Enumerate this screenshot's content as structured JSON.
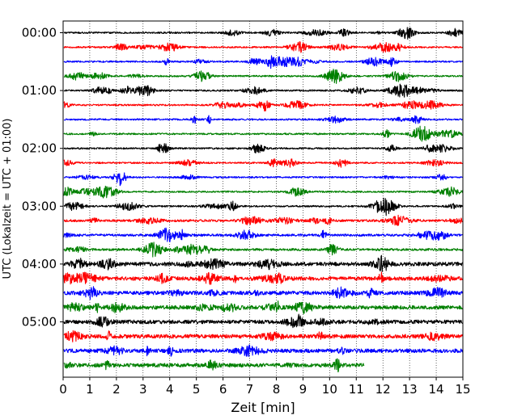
{
  "chart_data": {
    "type": "line",
    "xlabel": "Zeit  [min]",
    "ylabel": "UTC (Lokalzeit = UTC + 01:00)",
    "xlim": [
      0,
      15
    ],
    "x_ticks": [
      "0",
      "1",
      "2",
      "3",
      "4",
      "5",
      "6",
      "7",
      "8",
      "9",
      "10",
      "11",
      "12",
      "13",
      "14",
      "15"
    ],
    "y_ticks": [
      "00:00",
      "01:00",
      "02:00",
      "03:00",
      "04:00",
      "05:00"
    ],
    "y_tick_rows": [
      0,
      4,
      8,
      12,
      16,
      20
    ],
    "row_interval_min": 15,
    "grid": "vertical dotted",
    "trace_colors": [
      "#000000",
      "#ff0000",
      "#0000ff",
      "#008000"
    ],
    "rows": [
      {
        "start": "00:00",
        "end_min": 15
      },
      {
        "start": "00:15",
        "end_min": 15
      },
      {
        "start": "00:30",
        "end_min": 15
      },
      {
        "start": "00:45",
        "end_min": 15
      },
      {
        "start": "01:00",
        "end_min": 15
      },
      {
        "start": "01:15",
        "end_min": 15
      },
      {
        "start": "01:30",
        "end_min": 15
      },
      {
        "start": "01:45",
        "end_min": 15
      },
      {
        "start": "02:00",
        "end_min": 15
      },
      {
        "start": "02:15",
        "end_min": 15
      },
      {
        "start": "02:30",
        "end_min": 15
      },
      {
        "start": "02:45",
        "end_min": 15
      },
      {
        "start": "03:00",
        "end_min": 15
      },
      {
        "start": "03:15",
        "end_min": 15
      },
      {
        "start": "03:30",
        "end_min": 15
      },
      {
        "start": "03:45",
        "end_min": 15
      },
      {
        "start": "04:00",
        "end_min": 15
      },
      {
        "start": "04:15",
        "end_min": 15
      },
      {
        "start": "04:30",
        "end_min": 15
      },
      {
        "start": "04:45",
        "end_min": 15
      },
      {
        "start": "05:00",
        "end_min": 15
      },
      {
        "start": "05:15",
        "end_min": 15
      },
      {
        "start": "05:30",
        "end_min": 15
      },
      {
        "start": "05:45",
        "end_min": 11.3
      }
    ]
  }
}
